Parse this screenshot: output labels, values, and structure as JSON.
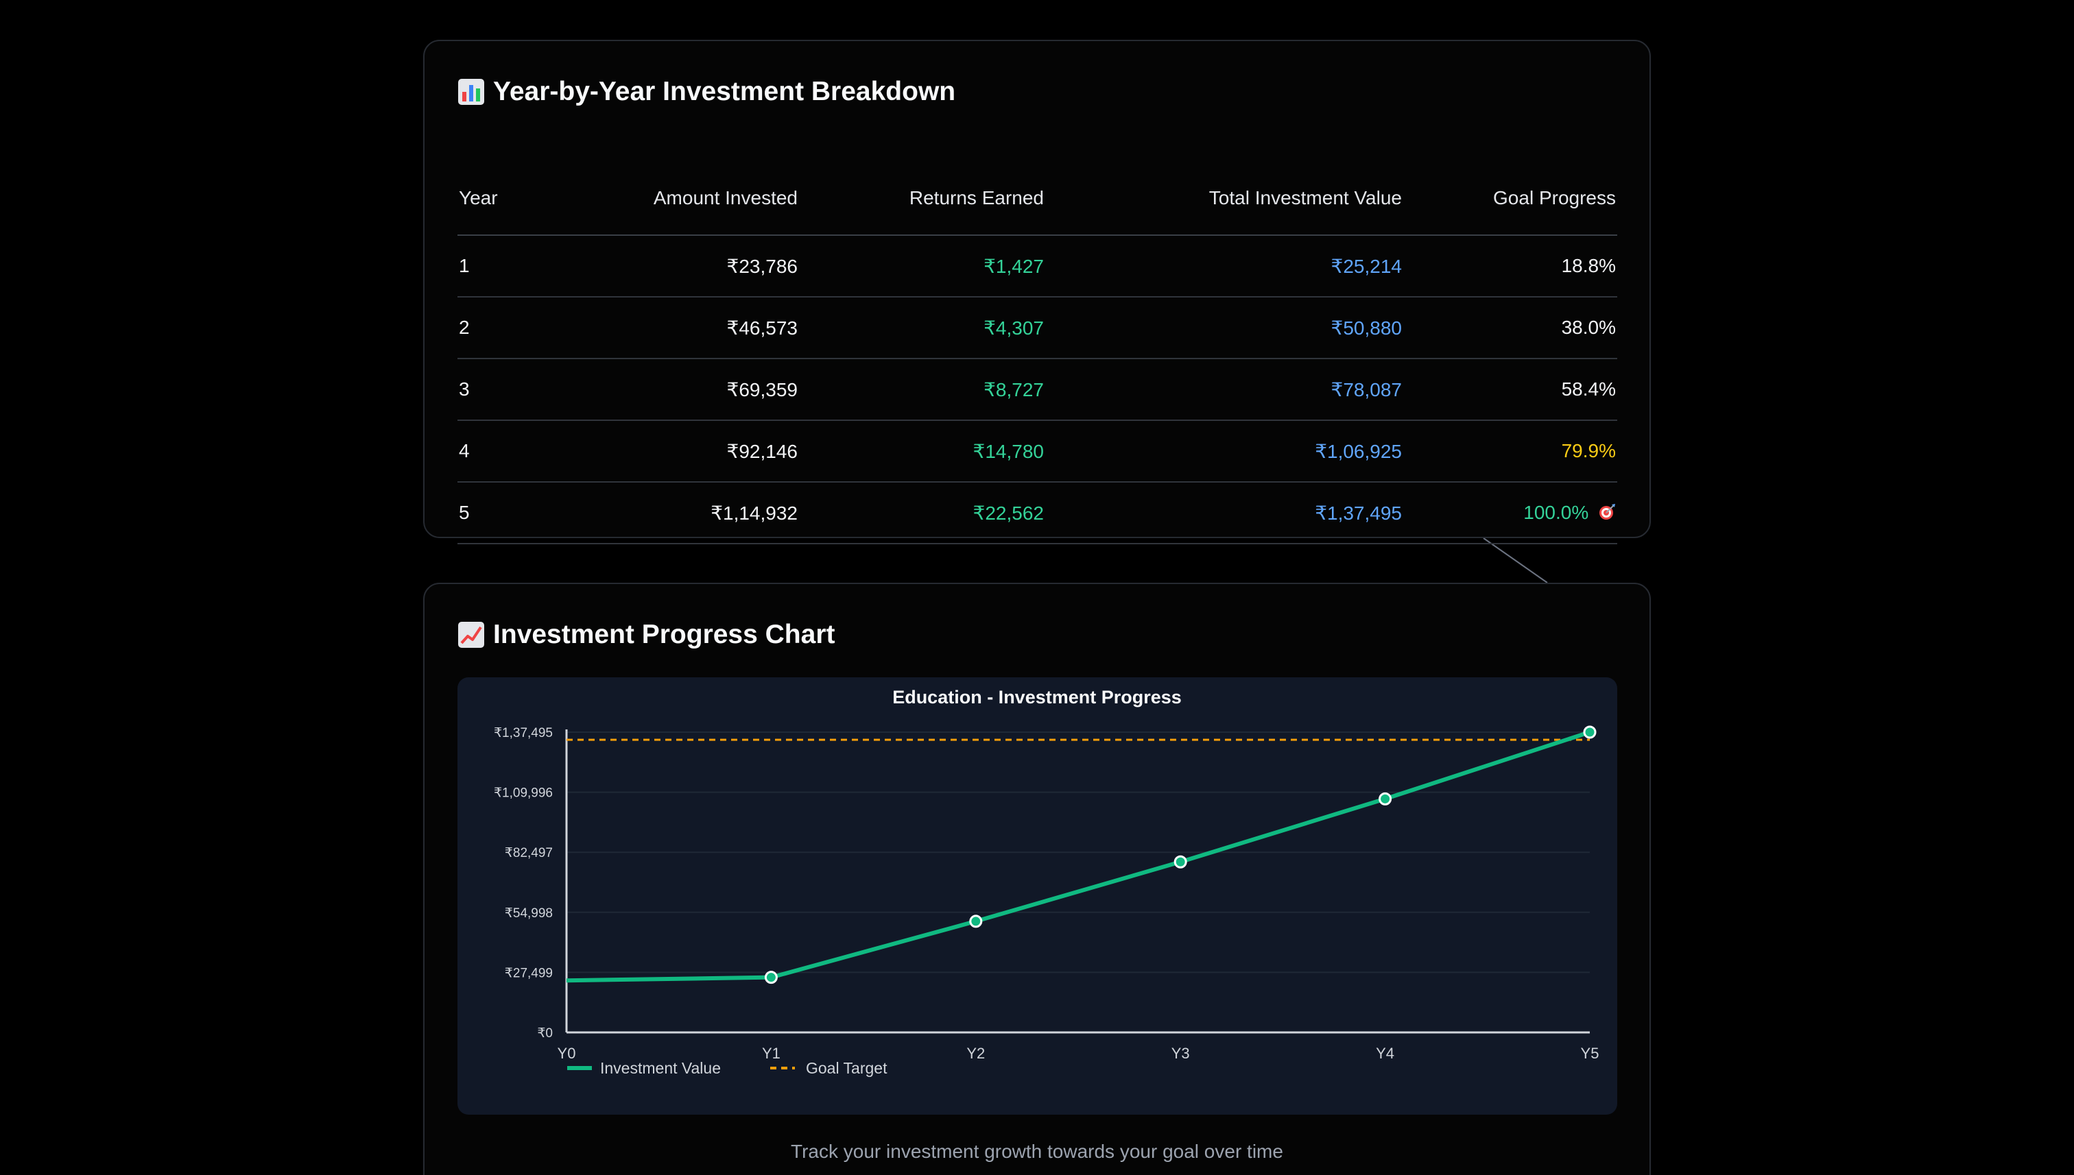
{
  "breakdown": {
    "title": "Year-by-Year Investment Breakdown",
    "title_icon": "bar-chart-icon",
    "columns": [
      "Year",
      "Amount Invested",
      "Returns Earned",
      "Total Investment Value",
      "Goal Progress"
    ],
    "rows": [
      {
        "year": "1",
        "invested": "₹23,786",
        "returns": "₹1,427",
        "total": "₹25,214",
        "progress": "18.8%",
        "progress_color": "#f3f4f6"
      },
      {
        "year": "2",
        "invested": "₹46,573",
        "returns": "₹4,307",
        "total": "₹50,880",
        "progress": "38.0%",
        "progress_color": "#f3f4f6"
      },
      {
        "year": "3",
        "invested": "₹69,359",
        "returns": "₹8,727",
        "total": "₹78,087",
        "progress": "58.4%",
        "progress_color": "#f3f4f6"
      },
      {
        "year": "4",
        "invested": "₹92,146",
        "returns": "₹14,780",
        "total": "₹1,06,925",
        "progress": "79.9%",
        "progress_color": "#facc15"
      },
      {
        "year": "5",
        "invested": "₹1,14,932",
        "returns": "₹22,562",
        "total": "₹1,37,495",
        "progress": "100.0%",
        "progress_color": "#34d399",
        "goal_reached_icon": "target-icon"
      }
    ]
  },
  "progress_chart": {
    "title": "Investment Progress Chart",
    "title_icon": "line-chart-icon",
    "caption": "Track your investment growth towards your goal over time"
  },
  "colors": {
    "investment_line": "#10b981",
    "goal_line": "#f59e0b",
    "returns": "#34d399",
    "total": "#60a5fa",
    "warning": "#facc15"
  },
  "chart_data": {
    "type": "line",
    "title": "Education - Investment Progress",
    "xlabel": "",
    "ylabel": "",
    "categories": [
      "Y0",
      "Y1",
      "Y2",
      "Y3",
      "Y4",
      "Y5"
    ],
    "y_ticks": [
      0,
      27499,
      54998,
      82497,
      109996,
      137495
    ],
    "y_tick_labels": [
      "₹0",
      "₹27,499",
      "₹54,998",
      "₹82,497",
      "₹1,09,996",
      "₹1,37,495"
    ],
    "ylim": [
      0,
      137495
    ],
    "grid": true,
    "legend_position": "bottom-left",
    "series": [
      {
        "name": "Investment Value",
        "values": [
          23786,
          25214,
          50880,
          78087,
          106925,
          137495
        ],
        "style": "solid"
      },
      {
        "name": "Goal Target",
        "values": [
          134000,
          134000,
          134000,
          134000,
          134000,
          134000
        ],
        "style": "dashed"
      }
    ]
  }
}
